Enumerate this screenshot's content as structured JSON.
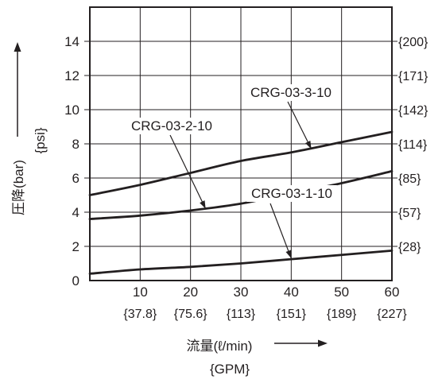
{
  "chart_data": {
    "type": "line",
    "xlabel": "流量(ℓ/min)",
    "xlabel_secondary": "{GPM}",
    "ylabel": "圧降(bar)",
    "ylabel_secondary": "{psi}",
    "xlim": [
      0,
      60
    ],
    "ylim": [
      0,
      16
    ],
    "grid": true,
    "x_ticks": [
      10,
      20,
      30,
      40,
      50,
      60
    ],
    "x_ticks_secondary": [
      "{37.8}",
      "{75.6}",
      "{113}",
      "{151}",
      "{189}",
      "{227}"
    ],
    "y_ticks": [
      0,
      2,
      4,
      6,
      8,
      10,
      12,
      14
    ],
    "y_ticks_secondary": [
      {
        "y": 14,
        "label": "{200}"
      },
      {
        "y": 12,
        "label": "{171}"
      },
      {
        "y": 10,
        "label": "{142}"
      },
      {
        "y": 8,
        "label": "{114}"
      },
      {
        "y": 6,
        "label": "{85}"
      },
      {
        "y": 4,
        "label": "{57}"
      },
      {
        "y": 2,
        "label": "{28}"
      }
    ],
    "series": [
      {
        "name": "CRG-03-3-10",
        "x": [
          0,
          10,
          20,
          30,
          40,
          50,
          60
        ],
        "y": [
          5.0,
          5.6,
          6.3,
          7.0,
          7.5,
          8.1,
          8.7
        ],
        "arrow_to": [
          44,
          7.7
        ]
      },
      {
        "name": "CRG-03-2-10",
        "x": [
          0,
          10,
          20,
          30,
          40,
          50,
          60
        ],
        "y": [
          3.6,
          3.8,
          4.1,
          4.5,
          5.1,
          5.7,
          6.4
        ],
        "arrow_to": [
          23,
          4.2
        ]
      },
      {
        "name": "CRG-03-1-10",
        "x": [
          0,
          10,
          20,
          30,
          40,
          50,
          60
        ],
        "y": [
          0.4,
          0.65,
          0.8,
          1.0,
          1.25,
          1.5,
          1.75
        ],
        "arrow_to": [
          40,
          1.3
        ]
      }
    ]
  }
}
